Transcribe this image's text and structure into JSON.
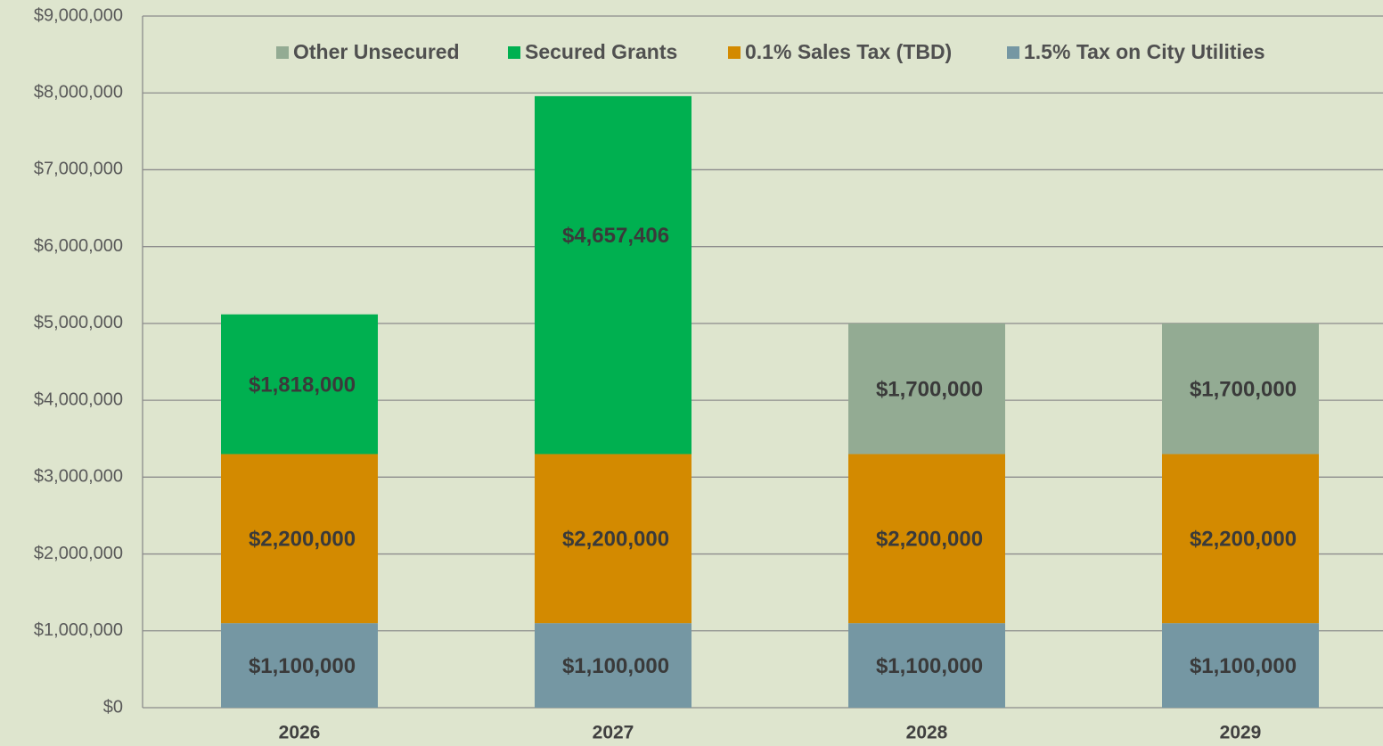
{
  "chart_data": {
    "type": "stacked_bar",
    "categories": [
      "2026",
      "2027",
      "2028",
      "2029"
    ],
    "series": [
      {
        "name": "1.5% Tax on City Utilities",
        "color": "#7597a3",
        "values": [
          1100000,
          1100000,
          1100000,
          1100000
        ],
        "value_labels": [
          "$1,100,000",
          "$1,100,000",
          "$1,100,000",
          "$1,100,000"
        ]
      },
      {
        "name": "0.1% Sales Tax (TBD)",
        "color": "#d38a00",
        "values": [
          2200000,
          2200000,
          2200000,
          2200000
        ],
        "value_labels": [
          "$2,200,000",
          "$2,200,000",
          "$2,200,000",
          "$2,200,000"
        ]
      },
      {
        "name": "Secured Grants",
        "color": "#00b050",
        "values": [
          1818000,
          4657406,
          null,
          null
        ],
        "value_labels": [
          "$1,818,000",
          "$4,657,406",
          null,
          null
        ]
      },
      {
        "name": "Other Unsecured",
        "color": "#93ab93",
        "values": [
          null,
          null,
          1700000,
          1700000
        ],
        "value_labels": [
          null,
          null,
          "$1,700,000",
          "$1,700,000"
        ]
      }
    ],
    "ylim": [
      0,
      9000000
    ],
    "yticks": [
      {
        "value": 0,
        "label": "$0"
      },
      {
        "value": 1000000,
        "label": "$1,000,000"
      },
      {
        "value": 2000000,
        "label": "$2,000,000"
      },
      {
        "value": 3000000,
        "label": "$3,000,000"
      },
      {
        "value": 4000000,
        "label": "$4,000,000"
      },
      {
        "value": 5000000,
        "label": "$5,000,000"
      },
      {
        "value": 6000000,
        "label": "$6,000,000"
      },
      {
        "value": 7000000,
        "label": "$7,000,000"
      },
      {
        "value": 8000000,
        "label": "$8,000,000"
      },
      {
        "value": 9000000,
        "label": "$9,000,000"
      }
    ],
    "grid": true,
    "legend": "top"
  }
}
